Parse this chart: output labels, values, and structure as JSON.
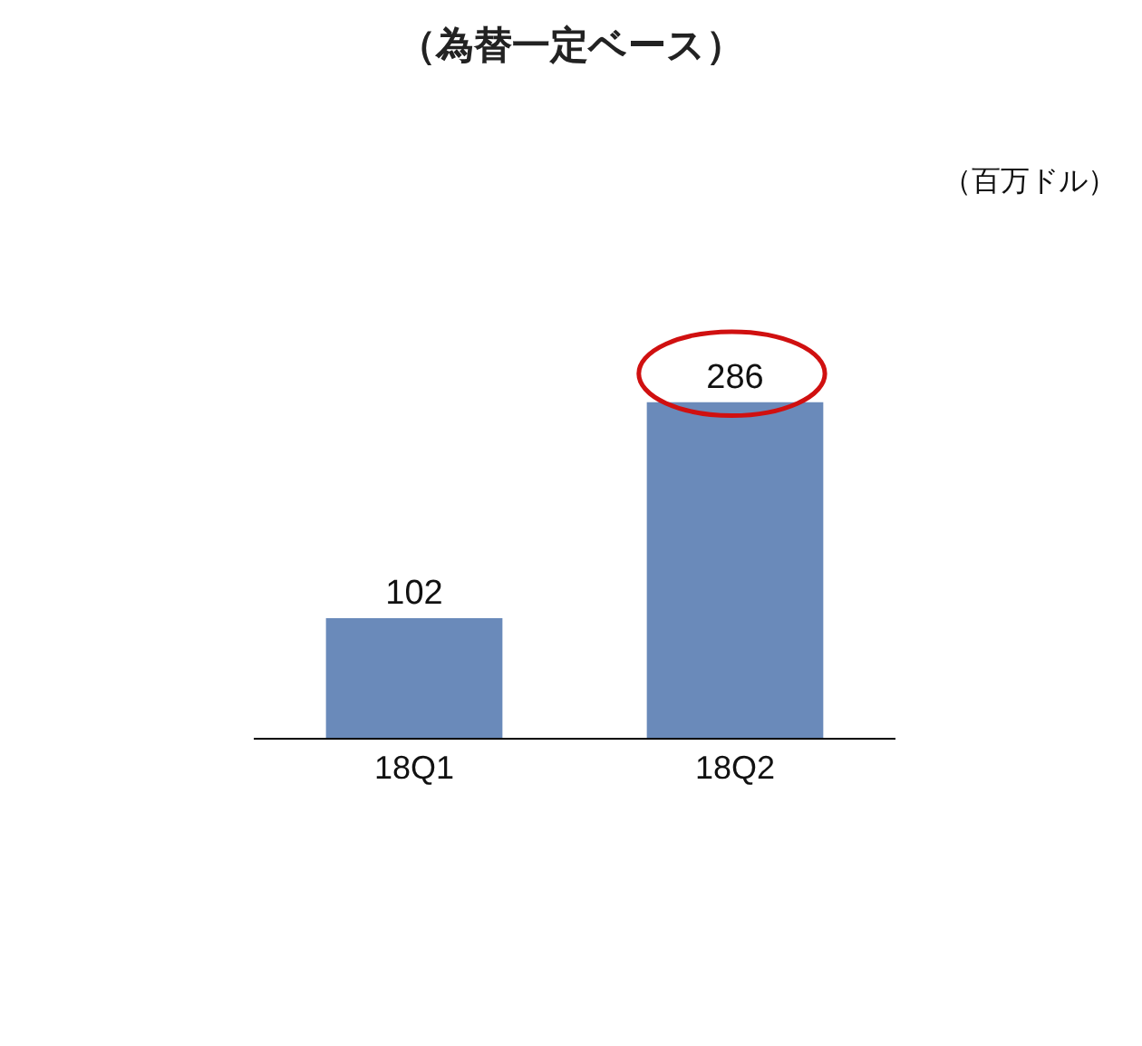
{
  "chart_data": {
    "type": "bar",
    "title": "（為替一定ベース）",
    "annotations": [
      "（百万ドル）"
    ],
    "categories": [
      "18Q1",
      "18Q2"
    ],
    "values": [
      102,
      286
    ],
    "color": "#6a8aba",
    "data_labels": true
  }
}
